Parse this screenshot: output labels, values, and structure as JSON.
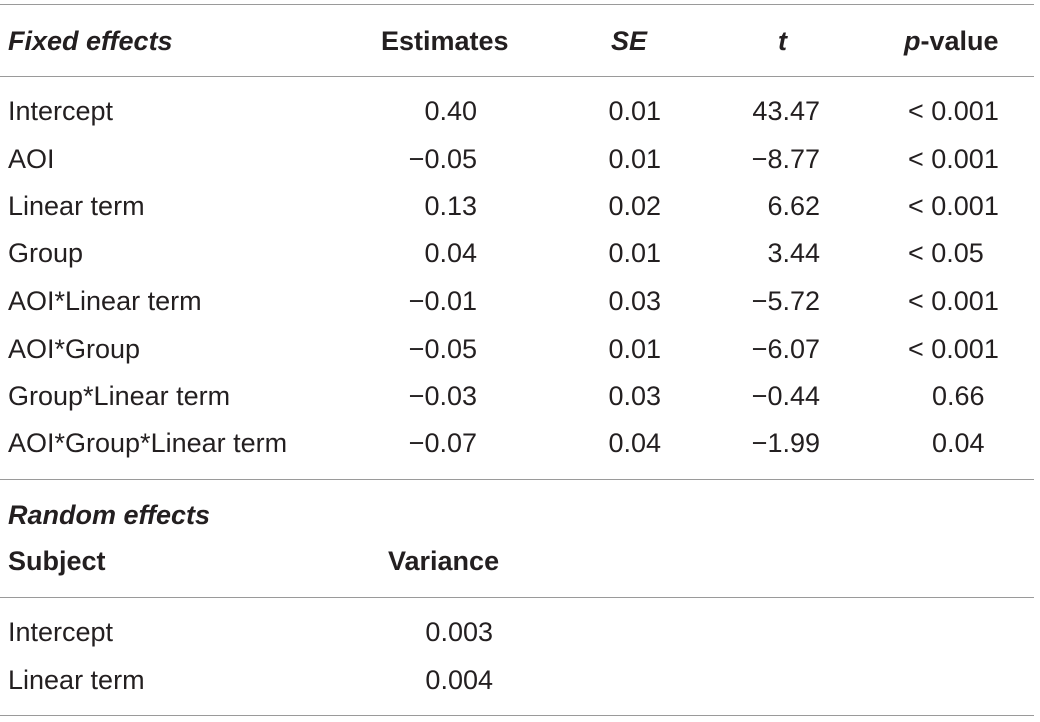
{
  "fixed_effects": {
    "header": {
      "label": "Fixed effects",
      "estimates": "Estimates",
      "se": "SE",
      "t": "t",
      "p_italic": "p",
      "p_rest": "-value"
    },
    "rows": [
      {
        "label": "Intercept",
        "estimate": "0.40",
        "se": "0.01",
        "t": "43.47",
        "p": "< 0.001"
      },
      {
        "label": "AOI",
        "estimate": "−0.05",
        "se": "0.01",
        "t": "−8.77",
        "p": "< 0.001"
      },
      {
        "label": "Linear term",
        "estimate": "0.13",
        "se": "0.02",
        "t": "6.62",
        "p": "< 0.001"
      },
      {
        "label": "Group",
        "estimate": "0.04",
        "se": "0.01",
        "t": "3.44",
        "p": "< 0.05"
      },
      {
        "label": "AOI*Linear term",
        "estimate": "−0.01",
        "se": "0.03",
        "t": "−5.72",
        "p": "< 0.001"
      },
      {
        "label": "AOI*Group",
        "estimate": "−0.05",
        "se": "0.01",
        "t": "−6.07",
        "p": "< 0.001"
      },
      {
        "label": "Group*Linear term",
        "estimate": "−0.03",
        "se": "0.03",
        "t": "−0.44",
        "p": "0.66"
      },
      {
        "label": "AOI*Group*Linear term",
        "estimate": "−0.07",
        "se": "0.04",
        "t": "−1.99",
        "p": "0.04"
      }
    ]
  },
  "random_effects": {
    "title": "Random effects",
    "header": {
      "subject": "Subject",
      "variance": "Variance"
    },
    "rows": [
      {
        "label": "Intercept",
        "variance": "0.003"
      },
      {
        "label": "Linear term",
        "variance": "0.004"
      }
    ]
  }
}
